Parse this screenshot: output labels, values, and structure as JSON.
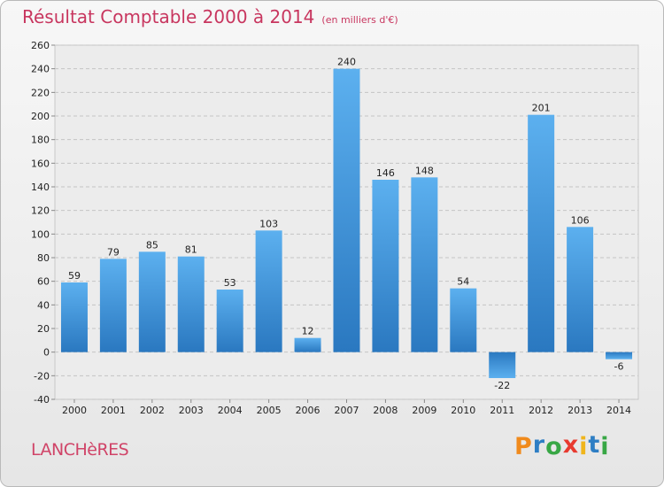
{
  "chart_data": {
    "type": "bar",
    "title": "Résultat Comptable 2000 à 2014",
    "subtitle": "(en milliers d'€)",
    "categories": [
      "2000",
      "2001",
      "2002",
      "2003",
      "2004",
      "2005",
      "2006",
      "2007",
      "2008",
      "2009",
      "2010",
      "2011",
      "2012",
      "2013",
      "2014"
    ],
    "values": [
      59,
      79,
      85,
      81,
      53,
      103,
      12,
      240,
      146,
      148,
      54,
      -22,
      201,
      106,
      -6
    ],
    "ylim": [
      -40,
      260
    ],
    "yticks": [
      -40,
      -20,
      0,
      20,
      40,
      60,
      80,
      100,
      120,
      140,
      160,
      180,
      200,
      220,
      240,
      260
    ],
    "grid": true,
    "bar_color": "#3d8fd8"
  },
  "commune": "LANCHèRES",
  "logo": {
    "letters": [
      "P",
      "r",
      "o",
      "x",
      "i",
      "t",
      "i"
    ],
    "colors": [
      "#f08a1c",
      "#2e7ec4",
      "#38a745",
      "#e83a2f",
      "#f0b51c",
      "#2e7ec4",
      "#38a745"
    ]
  }
}
